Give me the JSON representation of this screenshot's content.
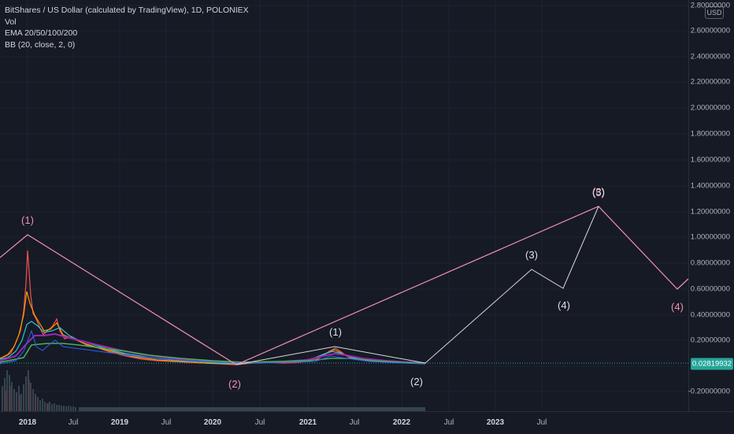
{
  "legend": {
    "title": "BitShares / US Dollar (calculated by TradingView), 1D, POLONIEX",
    "vol": "Vol",
    "ema": "EMA 20/50/100/200",
    "bb": "BB (20, close, 2, 0)"
  },
  "price_scale": {
    "currency": "USD",
    "labels": [
      "2.80000000",
      "2.60000000",
      "2.40000000",
      "2.20000000",
      "2.00000000",
      "1.80000000",
      "1.60000000",
      "1.40000000",
      "1.20000000",
      "1.00000000",
      "0.80000000",
      "0.60000000",
      "0.40000000",
      "0.20000000",
      "-0.20000000"
    ],
    "last_price": "0.02819932"
  },
  "time_scale": {
    "labels": [
      "2018",
      "Jul",
      "2019",
      "Jul",
      "2020",
      "Jul",
      "2021",
      "Jul",
      "2022",
      "Jul",
      "2023",
      "Jul"
    ]
  },
  "wave_labels": {
    "major_1": "(1)",
    "major_2": "(2)",
    "major_4_pink": "(4)",
    "top_5": "(5)",
    "top_3": "(3)",
    "minor_1": "(1)",
    "minor_2": "(2)",
    "minor_3": "(3)",
    "minor_4": "(4)"
  },
  "colors": {
    "background": "#161a25",
    "pink_line": "#f48fb1",
    "white_line": "#d8d8d8",
    "last_price": "#26a69a"
  }
}
